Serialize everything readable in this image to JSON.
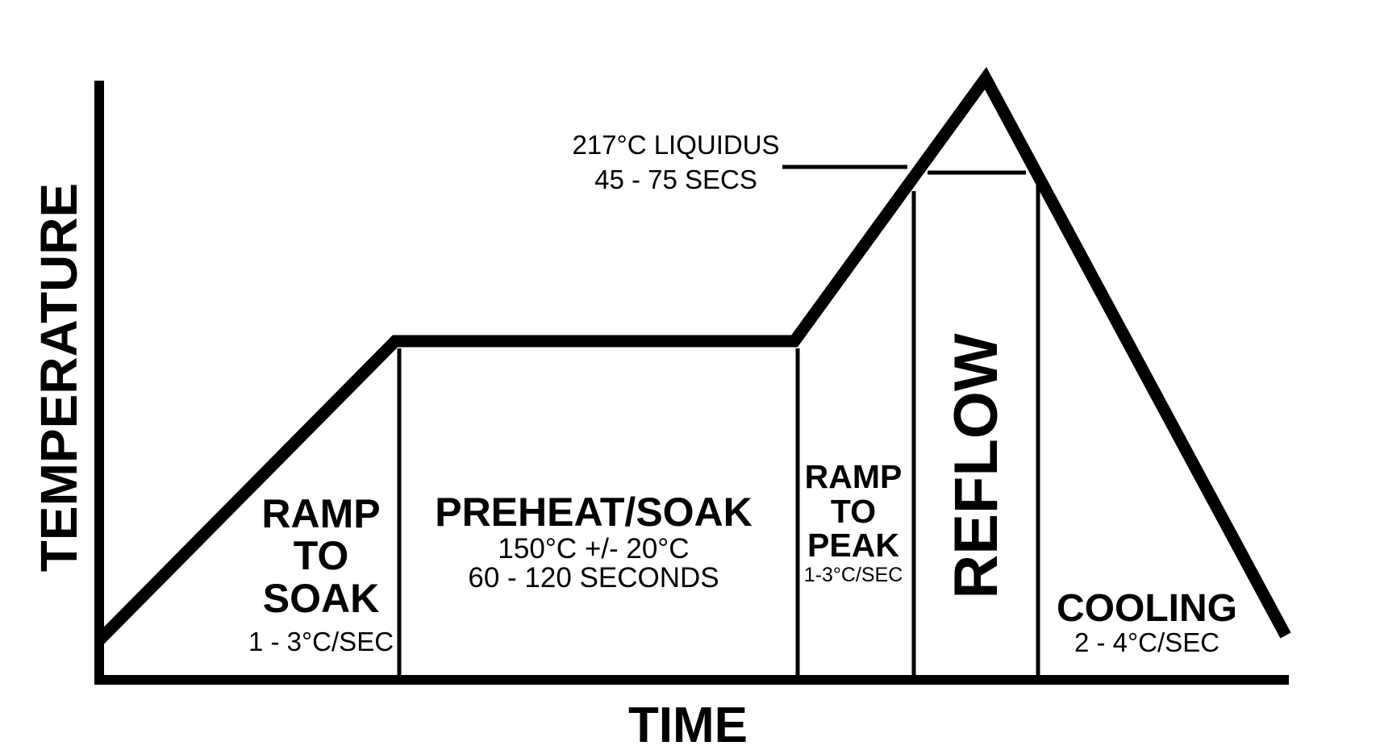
{
  "axes": {
    "y_label": "TEMPERATURE",
    "x_label": "TIME"
  },
  "zones": {
    "ramp_to_soak": {
      "title_lines": [
        "RAMP",
        "TO",
        "SOAK"
      ],
      "rate": "1 - 3°C/SEC"
    },
    "preheat_soak": {
      "title": "PREHEAT/SOAK",
      "temp": "150°C +/- 20°C",
      "duration": "60 - 120 SECONDS"
    },
    "ramp_to_peak": {
      "title_lines": [
        "RAMP",
        "TO",
        "PEAK"
      ],
      "rate": "1-3°C/SEC"
    },
    "reflow": {
      "title": "REFLOW"
    },
    "cooling": {
      "title": "COOLING",
      "rate": "2 - 4°C/SEC"
    }
  },
  "liquidus": {
    "line1": "217°C LIQUIDUS",
    "line2": "45 - 75 SECS"
  },
  "colors": {
    "ink": "#000000",
    "background": "#ffffff"
  }
}
